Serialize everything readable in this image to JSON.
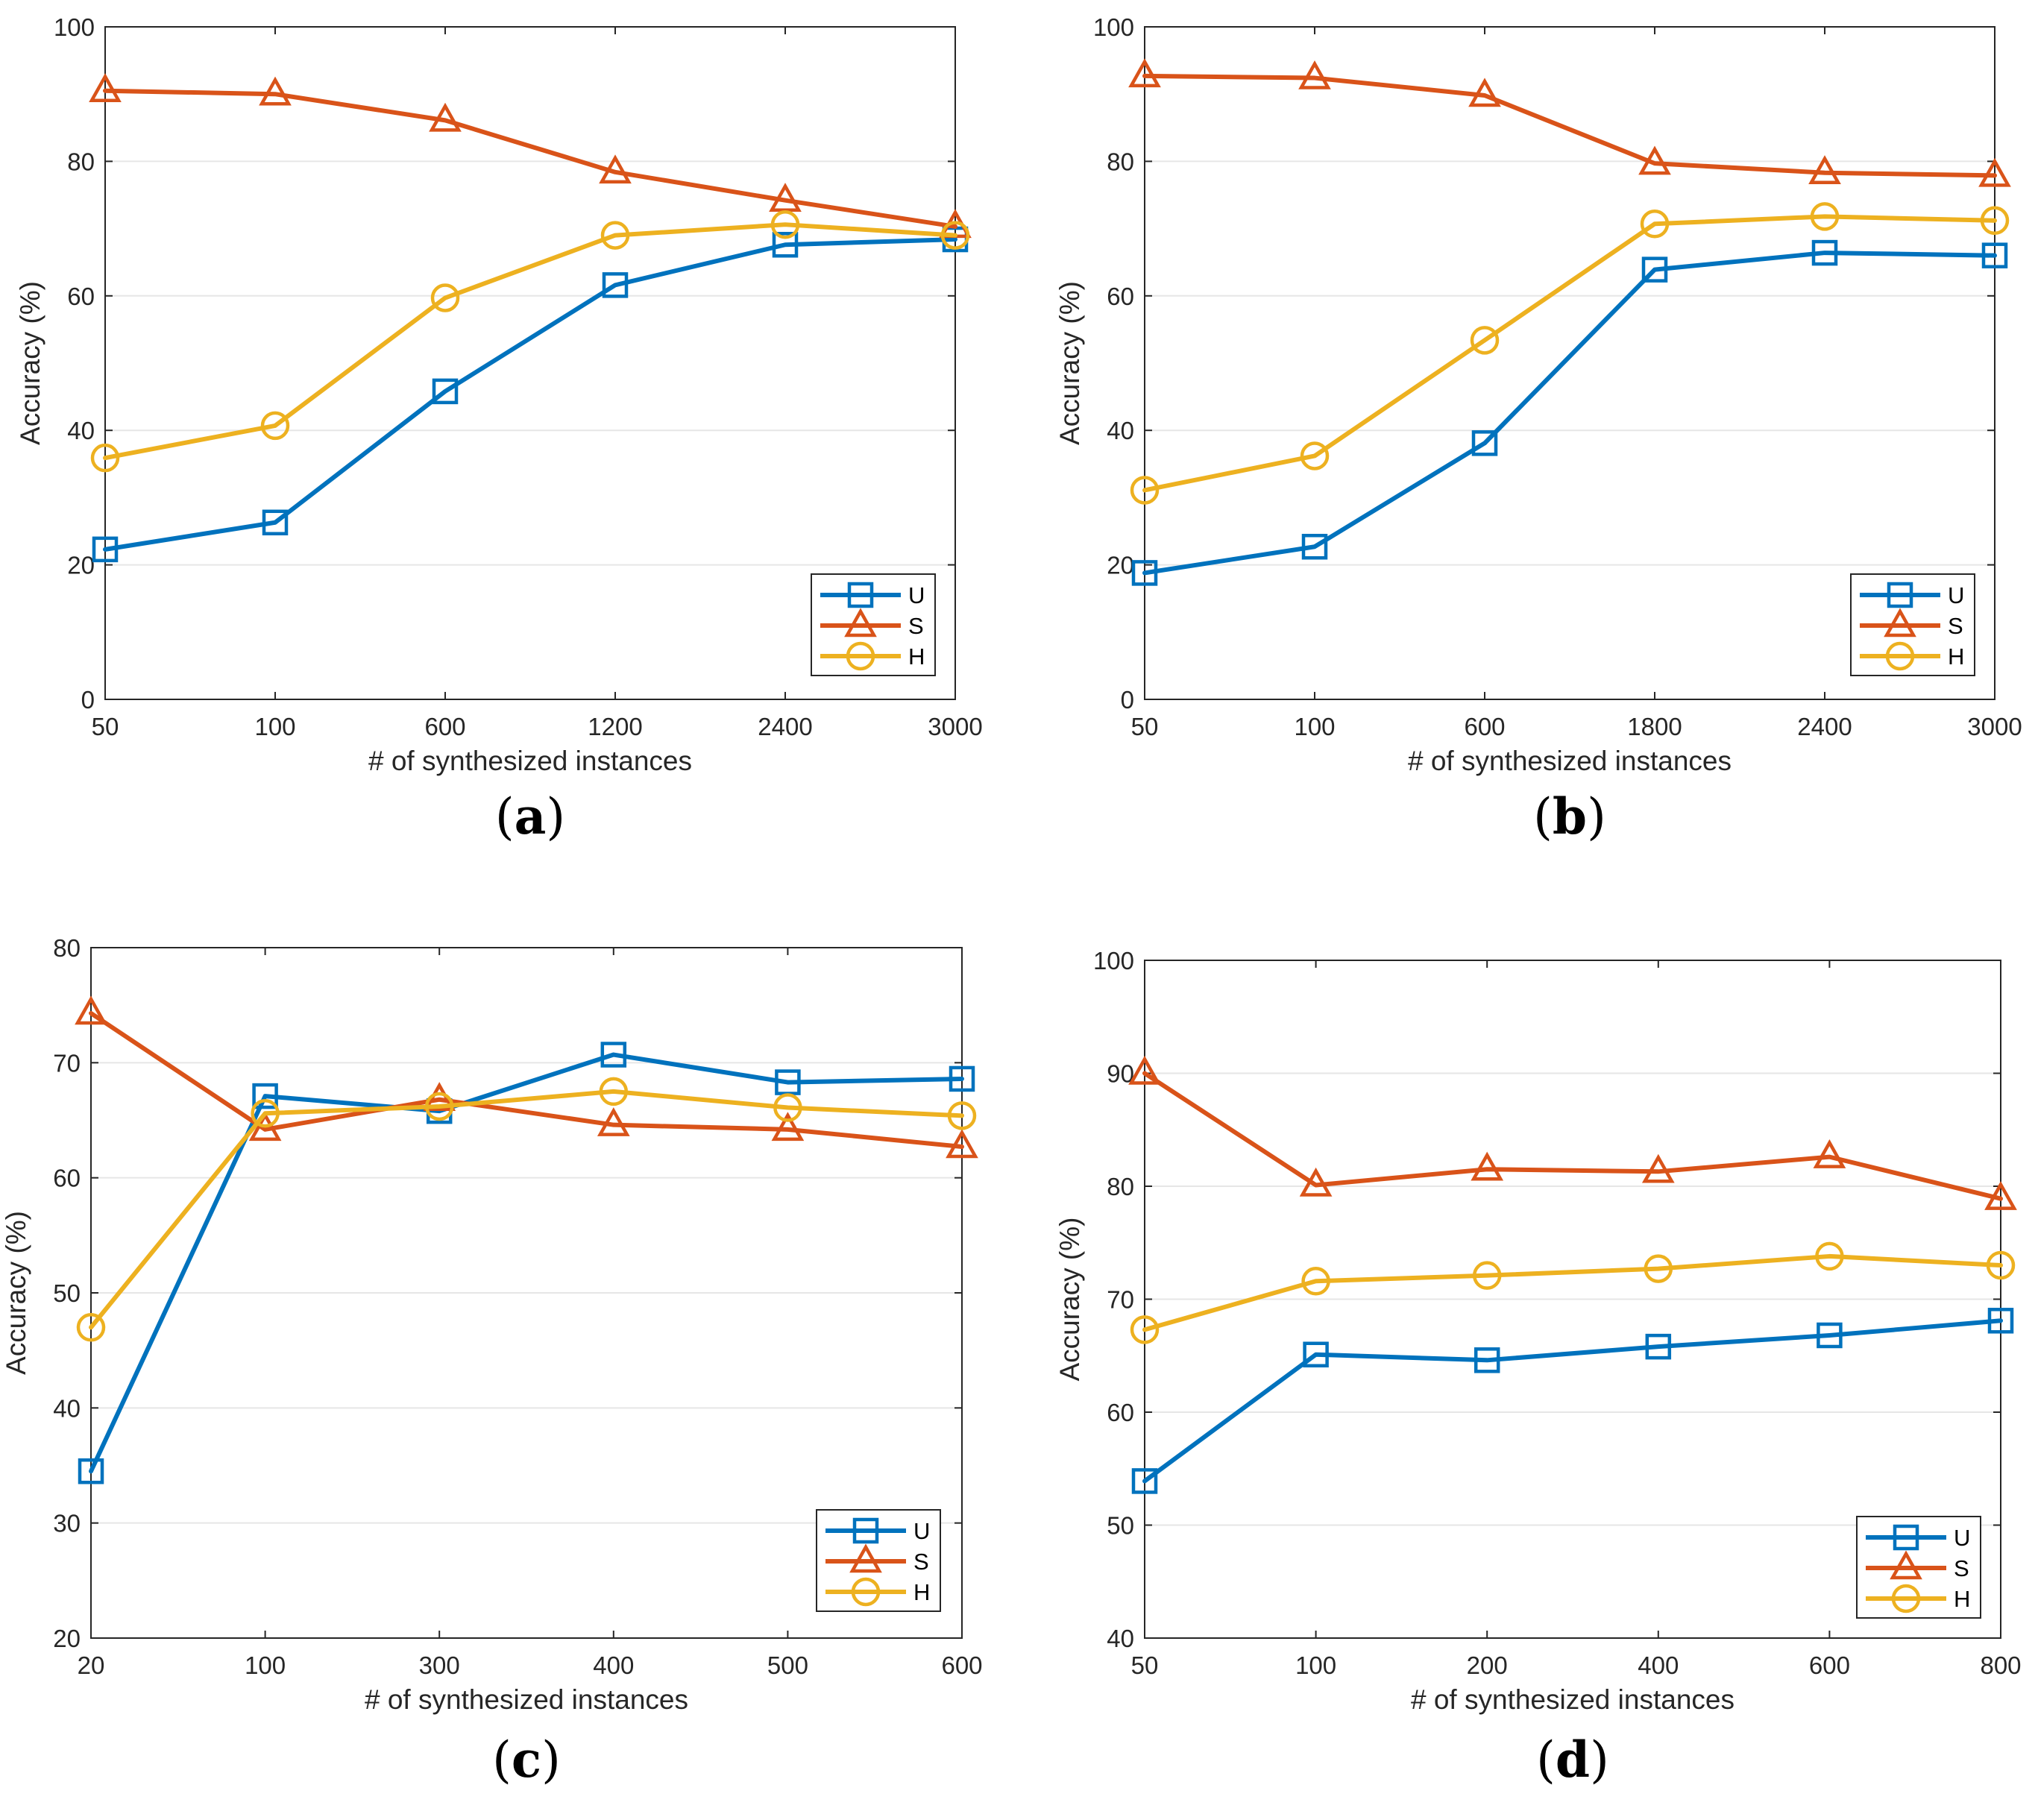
{
  "colors": {
    "U": "#0072BD",
    "S": "#D95319",
    "H": "#EDB120"
  },
  "chart_data": [
    {
      "type": "line",
      "panel_label": "a",
      "xlabel": "# of synthesized instances",
      "ylabel": "Accuracy (%)",
      "categories": [
        "50",
        "100",
        "600",
        "1200",
        "2400",
        "3000"
      ],
      "ylim": [
        0,
        100
      ],
      "yticks": [
        0,
        20,
        40,
        60,
        80,
        100
      ],
      "grid": true,
      "legend_position": "bottom-right",
      "series": [
        {
          "name": "U",
          "marker": "square",
          "values": [
            22.3,
            26.3,
            45.8,
            61.6,
            67.6,
            68.4
          ]
        },
        {
          "name": "S",
          "marker": "triangle",
          "values": [
            90.5,
            90.0,
            86.1,
            78.4,
            74.2,
            70.3
          ]
        },
        {
          "name": "H",
          "marker": "circle",
          "values": [
            35.9,
            40.7,
            59.7,
            69.0,
            70.6,
            69.0
          ]
        }
      ]
    },
    {
      "type": "line",
      "panel_label": "b",
      "xlabel": "# of synthesized instances",
      "ylabel": "Accuracy (%)",
      "categories": [
        "50",
        "100",
        "600",
        "1800",
        "2400",
        "3000"
      ],
      "ylim": [
        0,
        100
      ],
      "yticks": [
        0,
        20,
        40,
        60,
        80,
        100
      ],
      "grid": true,
      "legend_position": "bottom-right",
      "series": [
        {
          "name": "U",
          "marker": "square",
          "values": [
            18.8,
            22.7,
            38.1,
            63.9,
            66.4,
            66.0
          ]
        },
        {
          "name": "S",
          "marker": "triangle",
          "values": [
            92.7,
            92.4,
            89.8,
            79.7,
            78.3,
            77.9
          ]
        },
        {
          "name": "H",
          "marker": "circle",
          "values": [
            31.1,
            36.2,
            53.4,
            70.7,
            71.8,
            71.2
          ]
        }
      ]
    },
    {
      "type": "line",
      "panel_label": "c",
      "xlabel": "# of synthesized instances",
      "ylabel": "Accuracy (%)",
      "categories": [
        "20",
        "100",
        "300",
        "400",
        "500",
        "600"
      ],
      "ylim": [
        20,
        80
      ],
      "yticks": [
        20,
        30,
        40,
        50,
        60,
        70,
        80
      ],
      "grid": true,
      "legend_position": "bottom-right",
      "series": [
        {
          "name": "U",
          "marker": "square",
          "values": [
            34.5,
            67.1,
            65.8,
            70.7,
            68.3,
            68.6
          ]
        },
        {
          "name": "S",
          "marker": "triangle",
          "values": [
            74.3,
            64.2,
            66.8,
            64.6,
            64.2,
            62.7
          ]
        },
        {
          "name": "H",
          "marker": "circle",
          "values": [
            47.0,
            65.6,
            66.2,
            67.5,
            66.1,
            65.4
          ]
        }
      ]
    },
    {
      "type": "line",
      "panel_label": "d",
      "xlabel": "# of synthesized instances",
      "ylabel": "Accuracy (%)",
      "categories": [
        "50",
        "100",
        "200",
        "400",
        "600",
        "800"
      ],
      "ylim": [
        40,
        100
      ],
      "yticks": [
        40,
        50,
        60,
        70,
        80,
        90,
        100
      ],
      "grid": true,
      "legend_position": "bottom-right",
      "series": [
        {
          "name": "U",
          "marker": "square",
          "values": [
            53.9,
            65.1,
            64.6,
            65.8,
            66.8,
            68.1
          ]
        },
        {
          "name": "S",
          "marker": "triangle",
          "values": [
            90.0,
            80.1,
            81.5,
            81.3,
            82.6,
            78.9
          ]
        },
        {
          "name": "H",
          "marker": "circle",
          "values": [
            67.3,
            71.6,
            72.1,
            72.7,
            73.8,
            73.0
          ]
        }
      ]
    }
  ]
}
